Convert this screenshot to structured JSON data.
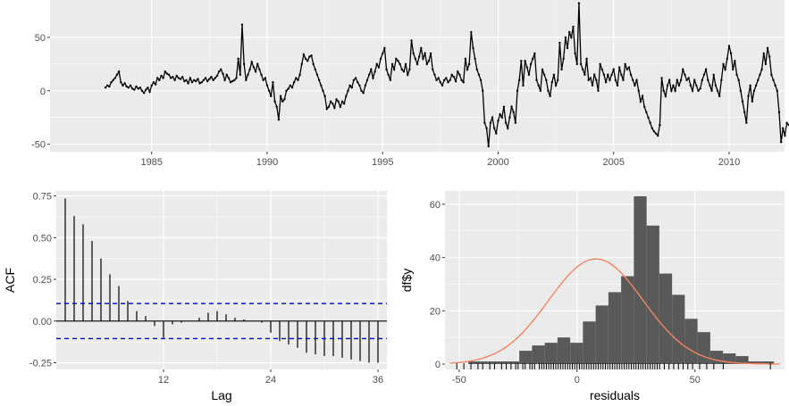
{
  "colors": {
    "panel_bg": "#ebebeb",
    "grid_major": "#ffffff",
    "line": "#000000",
    "acf_bound": "#0000cc",
    "hist_fill": "#595959",
    "density": "#f4845f"
  },
  "chart_data": [
    {
      "type": "line",
      "title": "",
      "xlabel": "",
      "ylabel": "",
      "xlim": [
        1980.6,
        2012.4
      ],
      "ylim": [
        -57,
        85
      ],
      "x_ticks": [
        1985,
        1990,
        1995,
        2000,
        2005,
        2010
      ],
      "x_tick_labels": [
        "1985",
        "1990",
        "1995",
        "2000",
        "2005",
        "2010"
      ],
      "y_ticks": [
        -50,
        0,
        50
      ],
      "y_tick_labels": [
        "-50",
        "0",
        "50"
      ],
      "x_start": 1983.0,
      "x_step": 0.0833333,
      "series": [
        {
          "values": [
            3,
            5,
            4,
            8,
            10,
            12,
            15,
            18,
            8,
            5,
            7,
            4,
            3,
            5,
            2,
            1,
            4,
            2,
            3,
            0,
            -2,
            1,
            3,
            -1,
            5,
            8,
            6,
            12,
            10,
            14,
            12,
            18,
            16,
            15,
            12,
            13,
            10,
            14,
            12,
            11,
            13,
            9,
            10,
            7,
            12,
            8,
            10,
            9,
            11,
            7,
            8,
            10,
            12,
            9,
            11,
            13,
            10,
            12,
            14,
            18,
            20,
            16,
            10,
            15,
            12,
            8,
            9,
            10,
            12,
            30,
            15,
            62,
            25,
            10,
            15,
            20,
            27,
            22,
            18,
            25,
            20,
            15,
            10,
            12,
            5,
            0,
            -5,
            8,
            -10,
            -15,
            -27,
            -5,
            -10,
            -8,
            0,
            2,
            5,
            3,
            8,
            12,
            10,
            15,
            25,
            34,
            30,
            28,
            32,
            33,
            25,
            20,
            15,
            10,
            5,
            0,
            -5,
            -17,
            -15,
            -10,
            -12,
            -16,
            -8,
            -10,
            -15,
            -10,
            -12,
            -5,
            0,
            5,
            3,
            10,
            12,
            8,
            5,
            0,
            -2,
            5,
            10,
            15,
            20,
            12,
            18,
            25,
            22,
            30,
            35,
            40,
            20,
            15,
            10,
            25,
            20,
            30,
            28,
            25,
            20,
            18,
            25,
            15,
            20,
            47,
            35,
            30,
            25,
            32,
            40,
            30,
            35,
            25,
            28,
            35,
            20,
            15,
            10,
            12,
            8,
            5,
            10,
            12,
            8,
            10,
            15,
            13,
            9,
            18,
            15,
            10,
            8,
            30,
            20,
            25,
            55,
            40,
            30,
            20,
            15,
            10,
            0,
            -30,
            -35,
            -52,
            -30,
            -25,
            -35,
            -40,
            -28,
            -22,
            -25,
            -15,
            -30,
            -35,
            -25,
            -15,
            -20,
            -30,
            0,
            10,
            28,
            5,
            28,
            22,
            15,
            25,
            30,
            35,
            10,
            5,
            0,
            20,
            15,
            10,
            0,
            -5,
            8,
            15,
            5,
            10,
            45,
            20,
            30,
            50,
            40,
            55,
            50,
            60,
            35,
            25,
            82,
            25,
            20,
            15,
            30,
            10,
            12,
            5,
            15,
            10,
            0,
            25,
            20,
            15,
            8,
            15,
            10,
            15,
            20,
            10,
            5,
            22,
            15,
            10,
            25,
            20,
            22,
            15,
            10,
            5,
            10,
            0,
            -10,
            -5,
            -15,
            -20,
            -25,
            -30,
            -35,
            -38,
            -40,
            -42,
            -32,
            12,
            0,
            -5,
            5,
            10,
            0,
            5,
            0,
            10,
            5,
            10,
            20,
            15,
            10,
            12,
            5,
            0,
            10,
            5,
            0,
            2,
            10,
            15,
            20,
            10,
            5,
            0,
            15,
            5,
            0,
            -5,
            10,
            25,
            20,
            30,
            42,
            35,
            20,
            28,
            15,
            10,
            0,
            -10,
            -20,
            -30,
            -5,
            5,
            -10,
            0,
            5,
            10,
            15,
            20,
            35,
            25,
            40,
            32,
            15,
            10,
            5,
            0,
            -20,
            -48,
            -35,
            -42,
            -30,
            -32,
            -30,
            -38,
            -20,
            -15,
            -20,
            -15,
            -18,
            0,
            -5,
            -8
          ]
        }
      ]
    },
    {
      "type": "bar",
      "title": "",
      "xlabel": "Lag",
      "ylabel": "ACF",
      "xlim": [
        0,
        37
      ],
      "ylim": [
        -0.29,
        0.78
      ],
      "x_ticks": [
        12,
        24,
        36
      ],
      "x_tick_labels": [
        "12",
        "24",
        "36"
      ],
      "y_ticks": [
        -0.25,
        0,
        0.25,
        0.5,
        0.75
      ],
      "y_tick_labels": [
        "-0.25",
        "0.00",
        "0.25",
        "0.50",
        "0.75"
      ],
      "bound": 0.105,
      "lags": [
        1,
        2,
        3,
        4,
        5,
        6,
        7,
        8,
        9,
        10,
        11,
        12,
        13,
        14,
        15,
        16,
        17,
        18,
        19,
        20,
        21,
        22,
        23,
        24,
        25,
        26,
        27,
        28,
        29,
        30,
        31,
        32,
        33,
        34,
        35,
        36
      ],
      "values": [
        0.735,
        0.63,
        0.58,
        0.48,
        0.375,
        0.28,
        0.21,
        0.12,
        0.06,
        0.03,
        -0.03,
        -0.1,
        -0.02,
        -0.01,
        0.0,
        0.02,
        0.05,
        0.06,
        0.04,
        0.02,
        0.01,
        0.0,
        -0.01,
        -0.07,
        -0.12,
        -0.14,
        -0.16,
        -0.19,
        -0.2,
        -0.21,
        -0.21,
        -0.22,
        -0.23,
        -0.24,
        -0.25,
        -0.25
      ]
    },
    {
      "type": "histogram",
      "title": "",
      "xlabel": "residuals",
      "ylabel": "df$y",
      "xlim": [
        -56,
        88
      ],
      "ylim": [
        -2,
        65
      ],
      "x_ticks": [
        -50,
        0,
        50
      ],
      "x_tick_labels": [
        "-50",
        "0",
        "50"
      ],
      "y_ticks": [
        0,
        20,
        40,
        60
      ],
      "y_tick_labels": [
        "0",
        "20",
        "40",
        "60"
      ],
      "bin_start": -51.5,
      "bin_width": 5.4,
      "counts": [
        0,
        1,
        1,
        1,
        1,
        5,
        7,
        8,
        10,
        8,
        16,
        22,
        27,
        33,
        63,
        52,
        34,
        26,
        17,
        12,
        5,
        4,
        3,
        1,
        1,
        0,
        0,
        0,
        0,
        0,
        0,
        0,
        0,
        0,
        0,
        1
      ],
      "density": {
        "mean": 8,
        "sd": 20,
        "peak": 39.5
      },
      "rug": [
        -51,
        -48,
        -45,
        -42,
        -40,
        -37,
        -35,
        -32,
        -30,
        -28,
        -26,
        -25,
        -23,
        -22,
        -20,
        -19,
        -18,
        -16,
        -15,
        -14,
        -13,
        -12,
        -11,
        -10,
        -9,
        -8,
        -7,
        -6,
        -5,
        -4,
        -3,
        -2,
        -1,
        0,
        1,
        2,
        3,
        4,
        5,
        6,
        7,
        8,
        9,
        10,
        11,
        12,
        13,
        14,
        15,
        16,
        17,
        18,
        19,
        20,
        21,
        22,
        23,
        24,
        25,
        26,
        27,
        28,
        29,
        30,
        31,
        32,
        33,
        34,
        35,
        37,
        39,
        41,
        43,
        45,
        47,
        49,
        52,
        55,
        58,
        62,
        82
      ]
    }
  ]
}
